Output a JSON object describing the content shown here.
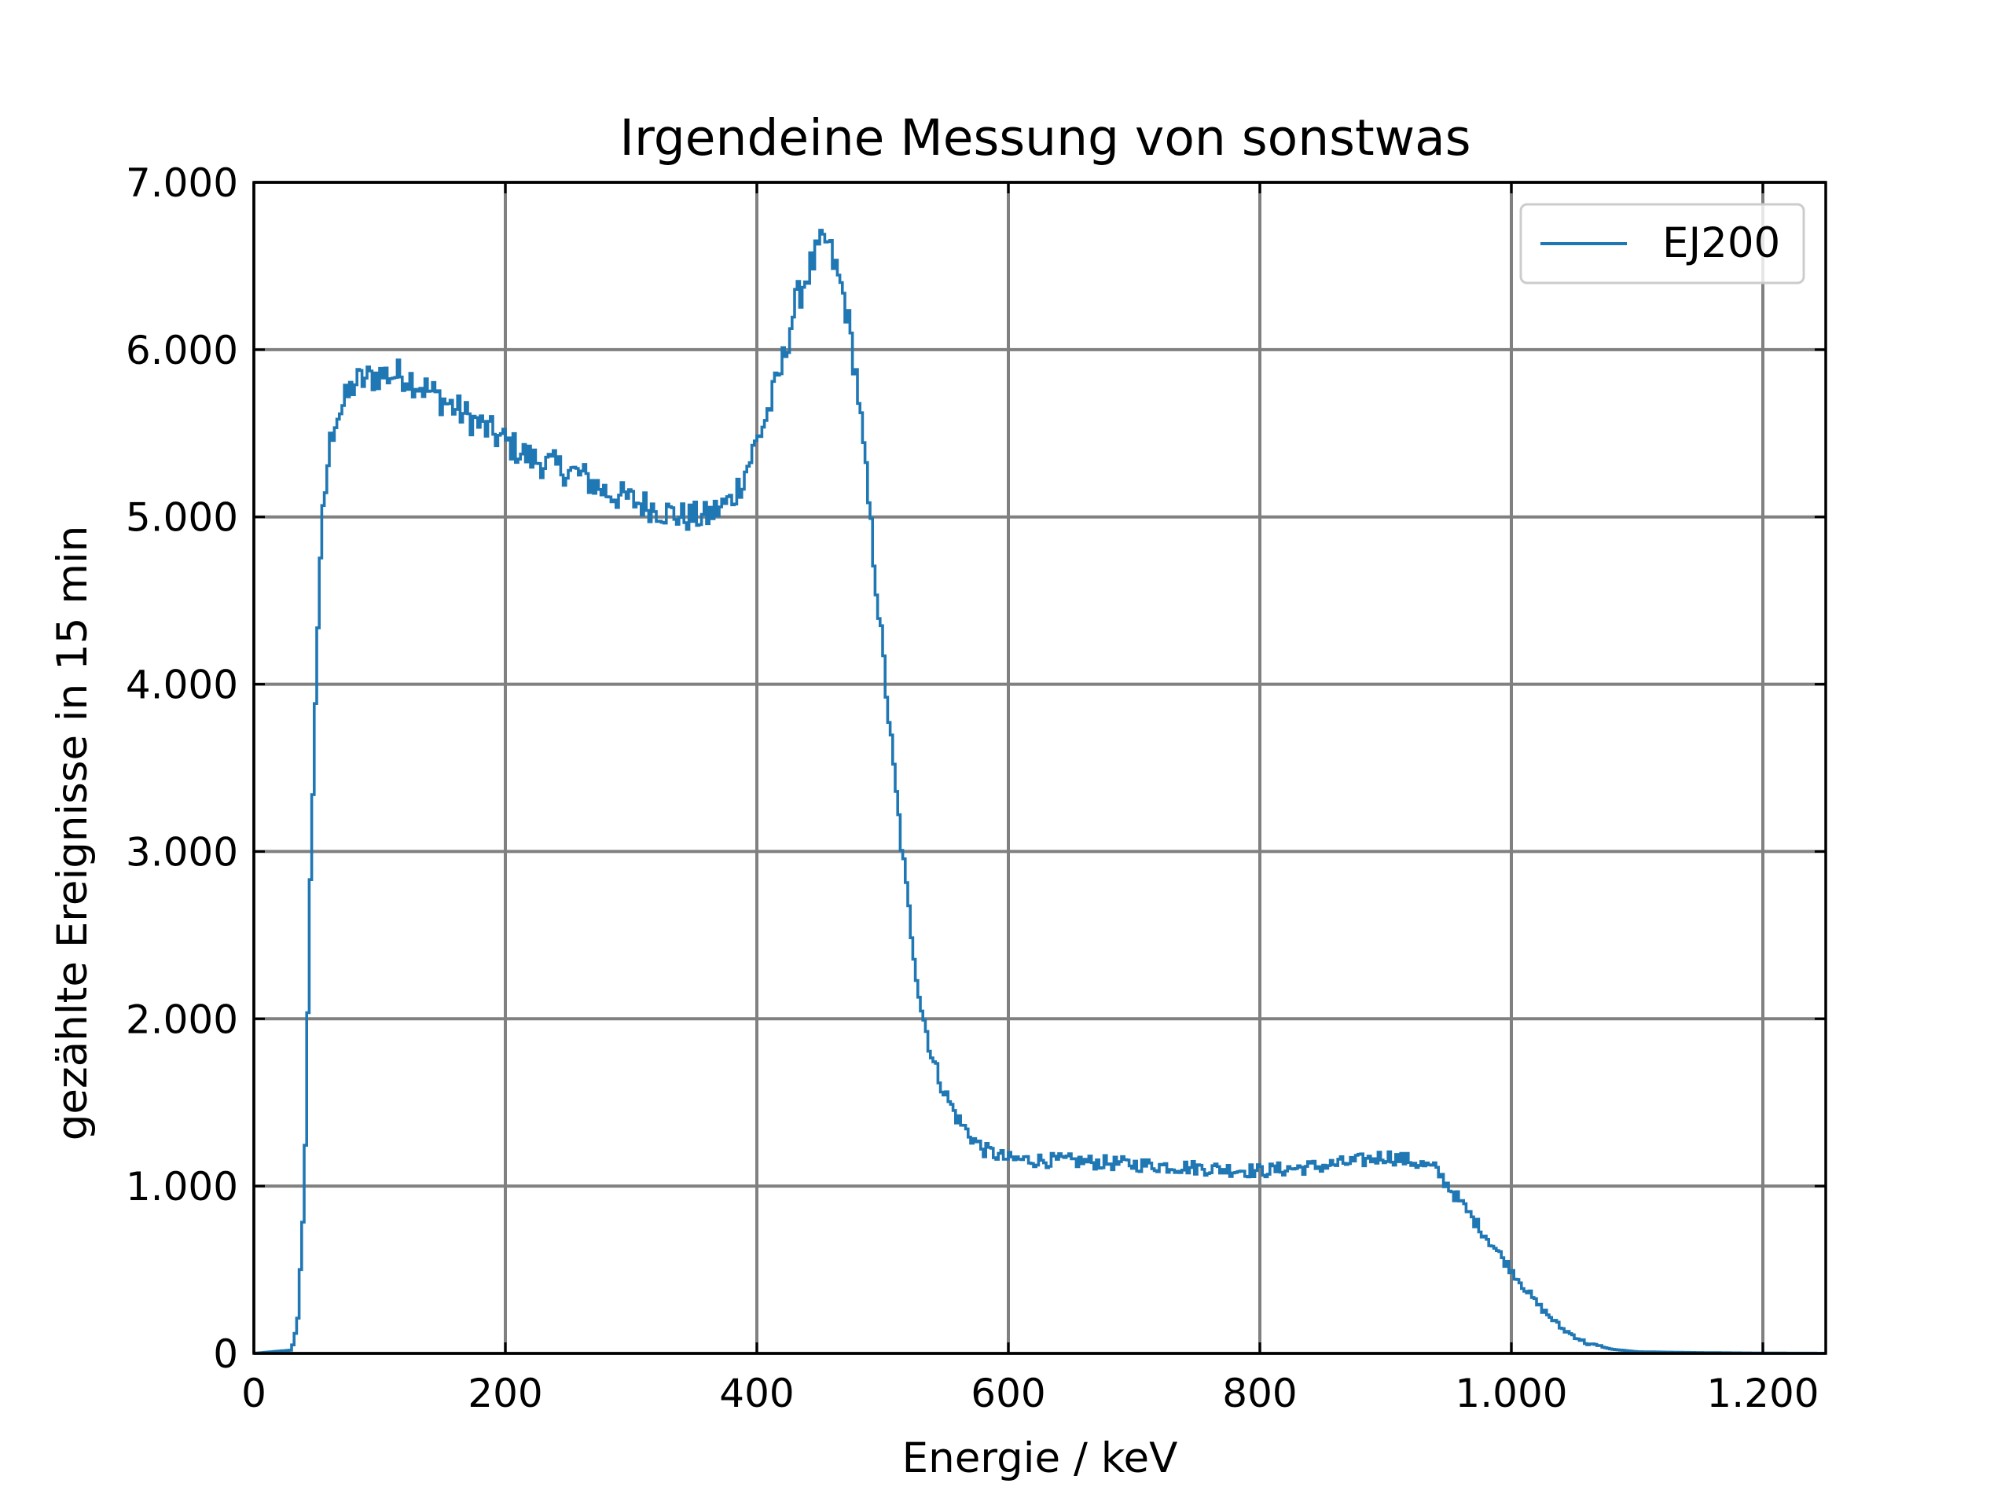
{
  "chart_data": {
    "type": "line",
    "title": "Irgendeine Messung von sonstwas",
    "xlabel": "Energie / keV",
    "ylabel": "gezählte Ereignisse in 15 min",
    "xlim": [
      0,
      1250
    ],
    "ylim": [
      0,
      7000
    ],
    "grid": true,
    "legend_position": "top-right",
    "x_ticks": [
      0,
      200,
      400,
      600,
      800,
      1000,
      1200
    ],
    "x_tick_labels": [
      "0",
      "200",
      "400",
      "600",
      "800",
      "1.000",
      "1.200"
    ],
    "y_ticks": [
      0,
      1000,
      2000,
      3000,
      4000,
      5000,
      6000,
      7000
    ],
    "y_tick_labels": [
      "0",
      "1.000",
      "2.000",
      "3.000",
      "4.000",
      "5.000",
      "6.000",
      "7.000"
    ],
    "series": [
      {
        "name": "EJ200",
        "color": "#1f77b4",
        "step": true,
        "x": [
          0,
          30,
          35,
          40,
          45,
          50,
          55,
          60,
          65,
          70,
          80,
          100,
          120,
          140,
          160,
          180,
          200,
          220,
          240,
          260,
          280,
          300,
          320,
          340,
          360,
          380,
          390,
          400,
          410,
          420,
          430,
          440,
          450,
          455,
          460,
          470,
          480,
          490,
          500,
          510,
          520,
          530,
          540,
          550,
          560,
          570,
          580,
          600,
          650,
          700,
          750,
          800,
          850,
          880,
          900,
          920,
          940,
          960,
          980,
          1000,
          1020,
          1040,
          1060,
          1080,
          1100,
          1150,
          1200,
          1250
        ],
        "y": [
          0,
          20,
          200,
          900,
          2800,
          4200,
          5000,
          5400,
          5600,
          5650,
          5800,
          5850,
          5850,
          5750,
          5650,
          5550,
          5450,
          5350,
          5300,
          5250,
          5150,
          5100,
          5050,
          5000,
          5000,
          5100,
          5250,
          5450,
          5650,
          5900,
          6250,
          6450,
          6600,
          6650,
          6550,
          6300,
          5800,
          5000,
          4200,
          3400,
          2700,
          2100,
          1750,
          1550,
          1400,
          1300,
          1220,
          1160,
          1150,
          1130,
          1110,
          1090,
          1120,
          1150,
          1180,
          1150,
          1100,
          900,
          700,
          500,
          300,
          150,
          60,
          25,
          10,
          5,
          2,
          1
        ]
      }
    ]
  }
}
